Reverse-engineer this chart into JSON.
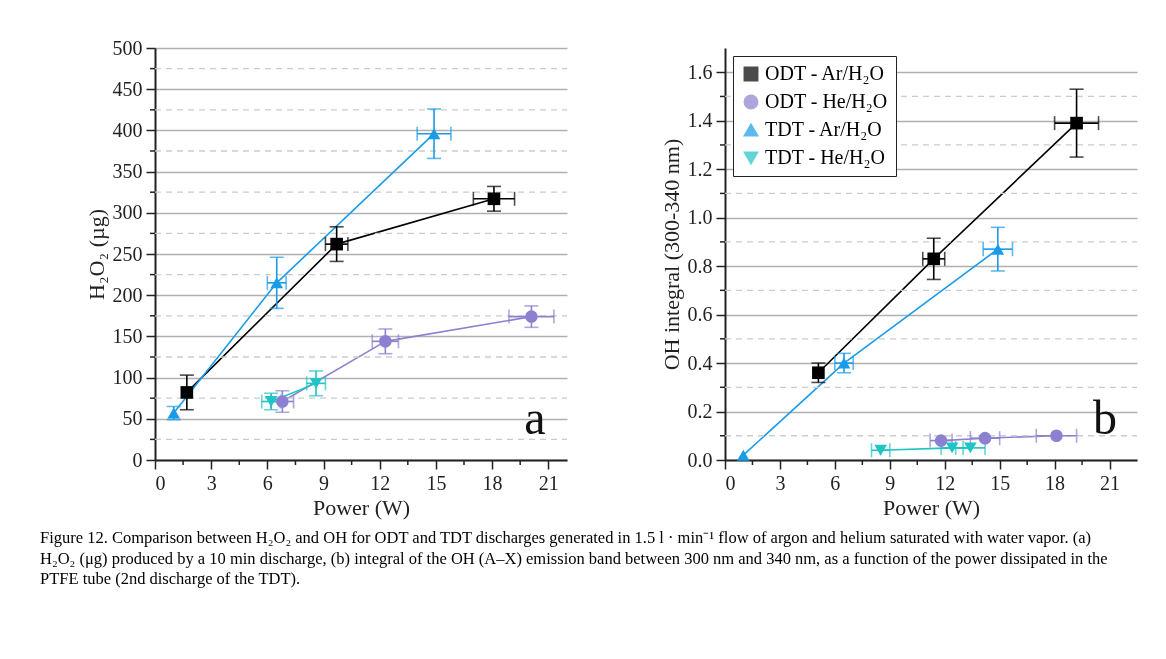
{
  "chart_data": [
    {
      "type": "line",
      "xlabel": "Power (W)",
      "ylabel": "H₂O₂ (µg)",
      "xlim": [
        0,
        22
      ],
      "ylim": [
        0,
        500
      ],
      "xticks": [
        0,
        {
          "value": 1.5,
          "label": null
        },
        3,
        {
          "value": 4.5,
          "label": null
        },
        6,
        {
          "value": 7.5,
          "label": null
        },
        9,
        {
          "value": 10.5,
          "label": null
        },
        12,
        {
          "value": 13.5,
          "label": null
        },
        15,
        {
          "value": 16.5,
          "label": null
        },
        18,
        {
          "value": 19.5,
          "label": null
        },
        21
      ],
      "yticks": [
        0,
        {
          "value": 25,
          "label": null
        },
        50,
        {
          "value": 75,
          "label": null
        },
        100,
        {
          "value": 125,
          "label": null
        },
        150,
        {
          "value": 175,
          "label": null
        },
        200,
        {
          "value": 225,
          "label": null
        },
        250,
        {
          "value": 275,
          "label": null
        },
        300,
        {
          "value": 325,
          "label": null
        },
        350,
        {
          "value": 375,
          "label": null
        },
        400,
        {
          "value": 425,
          "label": null
        },
        450,
        {
          "value": 475,
          "label": null
        },
        500
      ],
      "grid": "y",
      "annotations": [
        "a",
        "Figure 12. Comparison between H₂O₂ and OH for ODT and TDT discharges generated in 1.5 l · min⁻¹ flow of argon and helium saturated with water vapor. (a) H₂O₂ (μg) produced by a 10 min discharge, (b) integral of the OH (A–X) emission band between 300 nm and 340 nm, as a function of the power dissipated in the PTFE tube (2nd discharge of the TDT)."
      ],
      "series": [
        {
          "color": "#000000",
          "marker": "square",
          "x": [
            1.7,
            9.7,
            18.1
          ],
          "values": [
            82,
            262,
            317
          ],
          "errors": [
            21,
            21,
            15
          ],
          "xerrors": [
            null,
            0.6,
            1.1
          ]
        },
        {
          "color": "#8c80d0",
          "marker": "circle",
          "x": [
            6.8,
            12.3,
            20.1
          ],
          "values": [
            71,
            144,
            174
          ],
          "errors": [
            13,
            15,
            13
          ],
          "xerrors": [
            0.6,
            0.7,
            1.2
          ]
        },
        {
          "color": "#1a9be8",
          "marker": "triangle",
          "x": [
            1.0,
            6.5,
            14.9
          ],
          "values": [
            57,
            215,
            396
          ],
          "errors": [
            8,
            31,
            30
          ],
          "xerrors": [
            null,
            0.5,
            0.9
          ]
        },
        {
          "color": "#20c4c4",
          "marker": "triangle-down",
          "x": [
            6.2,
            8.6
          ],
          "values": [
            71,
            93
          ],
          "errors": [
            10,
            15
          ],
          "xerrors": [
            0.5,
            0.5
          ]
        }
      ]
    },
    {
      "type": "line",
      "xlabel": "Power (W)",
      "ylabel": "OH integral (300-340 nm)",
      "xlim": [
        0,
        22.5
      ],
      "ylim": [
        0,
        1.7
      ],
      "xticks": [
        0,
        {
          "value": 1.5,
          "label": null
        },
        3,
        {
          "value": 4.5,
          "label": null
        },
        6,
        {
          "value": 7.5,
          "label": null
        },
        9,
        {
          "value": 10.5,
          "label": null
        },
        12,
        {
          "value": 13.5,
          "label": null
        },
        15,
        {
          "value": 16.5,
          "label": null
        },
        18,
        {
          "value": 19.5,
          "label": null
        },
        21
      ],
      "yticks": [
        {
          "value": 0,
          "label": "0.0"
        },
        {
          "value": 0.1,
          "label": null
        },
        0.2,
        {
          "value": 0.3,
          "label": null
        },
        0.4,
        {
          "value": 0.5,
          "label": null
        },
        0.6,
        {
          "value": 0.7,
          "label": null
        },
        0.8,
        {
          "value": 0.9,
          "label": null
        },
        {
          "value": 1,
          "label": "1.0"
        },
        {
          "value": 1.1,
          "label": null
        },
        1.2,
        {
          "value": 1.3,
          "label": null
        },
        1.4,
        {
          "value": 1.5,
          "label": null
        },
        1.6
      ],
      "grid": "y",
      "legend": "top left",
      "annotations": [
        "b"
      ],
      "series": [
        {
          "name": "ODT - Ar/H₂O",
          "color": "#000000",
          "marker": "square",
          "x": [
            5.1,
            11.4,
            19.2
          ],
          "values": [
            0.36,
            0.83,
            1.39
          ],
          "errors": [
            0.04,
            0.085,
            0.14
          ],
          "xerrors": [
            null,
            0.6,
            1.2
          ]
        },
        {
          "name": "ODT - He/H₂O",
          "color": "#8c80d0",
          "marker": "circle",
          "x": [
            11.8,
            14.2,
            18.1
          ],
          "values": [
            0.08,
            0.09,
            0.1
          ],
          "xerrors": [
            0.6,
            0.8,
            1.1
          ]
        },
        {
          "name": "TDT - Ar/H₂O",
          "color": "#1a9be8",
          "marker": "triangle",
          "x": [
            1.0,
            6.5,
            14.9
          ],
          "values": [
            0.02,
            0.4,
            0.87
          ],
          "errors": [
            null,
            0.04,
            0.09
          ],
          "xerrors": [
            null,
            0.5,
            0.8
          ]
        },
        {
          "name": "TDT - He/H₂O",
          "color": "#20c4c4",
          "marker": "triangle-down",
          "x": [
            8.5,
            12.4,
            13.4
          ],
          "values": [
            0.04,
            0.05,
            0.05
          ],
          "xerrors": [
            0.5,
            0.6,
            0.8
          ]
        }
      ]
    }
  ]
}
